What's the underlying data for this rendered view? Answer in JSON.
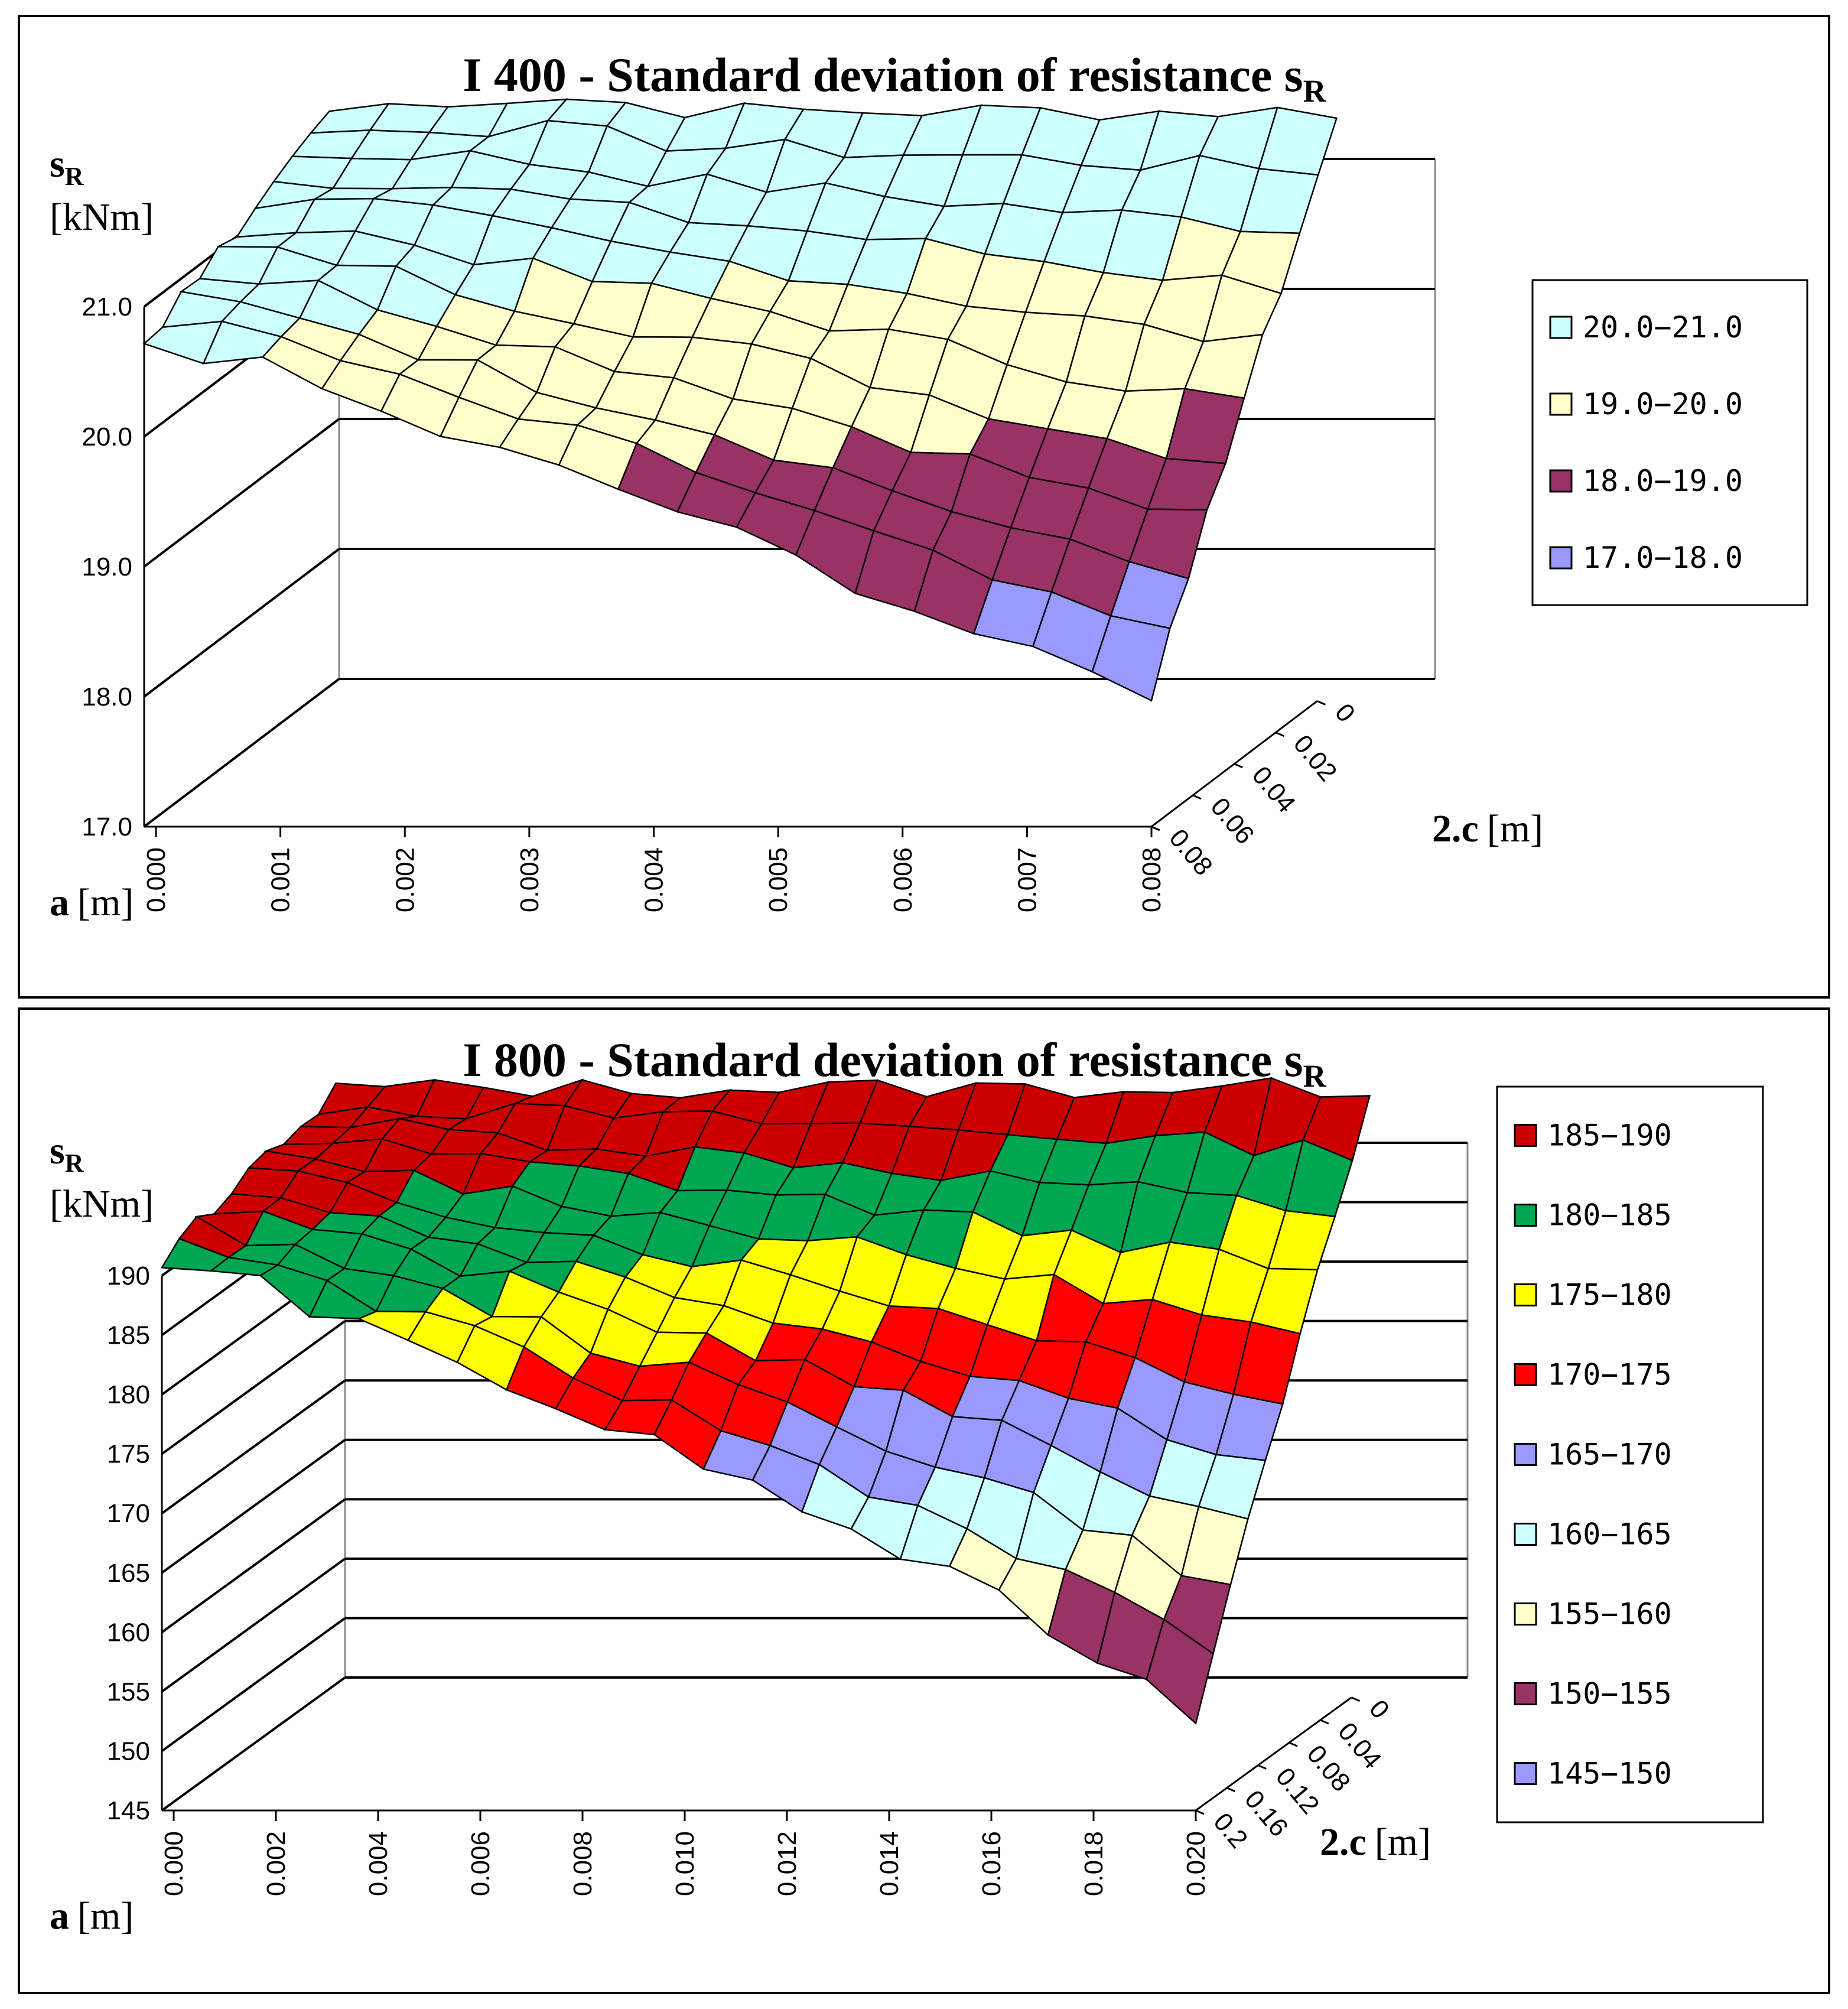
{
  "chart_data": [
    {
      "type": "surface3d",
      "title": "I 400 - Standard deviation of resistance s",
      "title_subscript": "R",
      "zlabel_symbol": "s",
      "zlabel_subscript": "R",
      "zlabel_unit": "[kNm]",
      "xlabel_symbol": "a",
      "xlabel_unit": "[m]",
      "ylabel_symbol": "2.c",
      "ylabel_unit": "[m]",
      "x_ticks": [
        "0.000",
        "0.001",
        "0.002",
        "0.003",
        "0.004",
        "0.005",
        "0.006",
        "0.007",
        "0.008"
      ],
      "y_ticks": [
        "0",
        "0.02",
        "0.04",
        "0.06",
        "0.08"
      ],
      "z_ticks": [
        "17.0",
        "18.0",
        "19.0",
        "20.0",
        "21.0"
      ],
      "zlim": [
        17,
        21
      ],
      "xlim": [
        0,
        0.008
      ],
      "ylim": [
        0,
        0.08
      ],
      "legend": [
        {
          "label": "20.0−21.0",
          "color": "#ccffff"
        },
        {
          "label": "19.0−20.0",
          "color": "#ffffcc"
        },
        {
          "label": "18.0−19.0",
          "color": "#993366"
        },
        {
          "label": "17.0−18.0",
          "color": "#9999ff"
        }
      ],
      "front_edge_values": [
        20.1,
        19.9,
        19.5,
        19.2,
        18.9,
        18.5,
        18.1,
        17.7,
        17.4
      ],
      "back_edge_values": [
        20.8,
        20.9,
        20.9,
        20.8,
        20.8,
        20.8,
        20.8,
        20.8,
        20.8
      ]
    },
    {
      "type": "surface3d",
      "title": "I 800 - Standard deviation of resistance s",
      "title_subscript": "R",
      "zlabel_symbol": "s",
      "zlabel_subscript": "R",
      "zlabel_unit": "[kNm]",
      "xlabel_symbol": "a",
      "xlabel_unit": "[m]",
      "ylabel_symbol": "2.c",
      "ylabel_unit": "[m]",
      "x_ticks": [
        "0.000",
        "0.002",
        "0.004",
        "0.006",
        "0.008",
        "0.010",
        "0.012",
        "0.014",
        "0.016",
        "0.018",
        "0.020"
      ],
      "y_ticks": [
        "0",
        "0.04",
        "0.08",
        "0.12",
        "0.16",
        "0.2"
      ],
      "z_ticks": [
        "145",
        "150",
        "155",
        "160",
        "165",
        "170",
        "175",
        "180",
        "185",
        "190"
      ],
      "zlim": [
        145,
        190
      ],
      "xlim": [
        0,
        0.02
      ],
      "ylim": [
        0,
        0.2
      ],
      "legend": [
        {
          "label": "185−190",
          "color": "#cc0000"
        },
        {
          "label": "180−185",
          "color": "#00a651"
        },
        {
          "label": "175−180",
          "color": "#ffff00"
        },
        {
          "label": "170−175",
          "color": "#ff0000"
        },
        {
          "label": "165−170",
          "color": "#9999ff"
        },
        {
          "label": "160−165",
          "color": "#ccffff"
        },
        {
          "label": "155−160",
          "color": "#ffffcc"
        },
        {
          "label": "150−155",
          "color": "#993366"
        },
        {
          "label": "145−150",
          "color": "#9999ff"
        }
      ],
      "front_edge_values": [
        185,
        183,
        179,
        176,
        172,
        169,
        165,
        161,
        157,
        152,
        147
      ],
      "back_edge_values": [
        189,
        189,
        189,
        189,
        189,
        189,
        189,
        189,
        189,
        189,
        189
      ]
    }
  ]
}
